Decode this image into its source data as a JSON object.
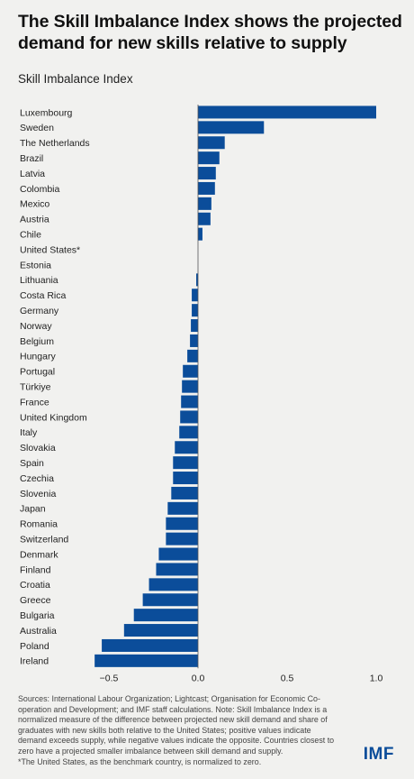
{
  "header": {
    "title": "The Skill Imbalance Index shows the projected demand for new skills relative to supply",
    "subtitle": "Skill Imbalance Index"
  },
  "chart_data": {
    "type": "bar",
    "orientation": "horizontal",
    "categories": [
      "Luxembourg",
      "Sweden",
      "The Netherlands",
      "Brazil",
      "Latvia",
      "Colombia",
      "Mexico",
      "Austria",
      "Chile",
      "United States*",
      "Estonia",
      "Lithuania",
      "Costa Rica",
      "Germany",
      "Norway",
      "Belgium",
      "Hungary",
      "Portugal",
      "Türkiye",
      "France",
      "United Kingdom",
      "Italy",
      "Slovakia",
      "Spain",
      "Czechia",
      "Slovenia",
      "Japan",
      "Romania",
      "Switzerland",
      "Denmark",
      "Finland",
      "Croatia",
      "Greece",
      "Bulgaria",
      "Australia",
      "Poland",
      "Ireland"
    ],
    "values": [
      1.0,
      0.37,
      0.15,
      0.12,
      0.1,
      0.095,
      0.075,
      0.07,
      0.025,
      0.0,
      0.0,
      -0.01,
      -0.035,
      -0.035,
      -0.04,
      -0.045,
      -0.06,
      -0.085,
      -0.09,
      -0.095,
      -0.1,
      -0.105,
      -0.13,
      -0.14,
      -0.14,
      -0.15,
      -0.17,
      -0.18,
      -0.18,
      -0.22,
      -0.235,
      -0.275,
      -0.31,
      -0.36,
      -0.415,
      -0.54,
      -0.58
    ],
    "xlim": [
      -0.6,
      1.0
    ],
    "xticks": [
      -0.5,
      0.0,
      0.5,
      1.0
    ],
    "xtick_labels": [
      "−0.5",
      "0.0",
      "0.5",
      "1.0"
    ],
    "bar_color": "#0b4d9a",
    "grid": false
  },
  "footer": {
    "sources": "Sources: International Labour Organization; Lightcast; Organisation for Economic Co-operation and Development; and IMF staff calculations. Note: Skill Imbalance Index is a normalized measure of the difference between projected new skill demand and share of graduates with new skills both relative to the United States; positive values indicate demand exceeds supply, while negative values indicate the opposite. Countries closest to zero have a projected smaller imbalance between skill demand and supply.",
    "benchmark_note": "*The United States, as the benchmark country, is normalized to zero.",
    "logo": "IMF"
  },
  "colors": {
    "background": "#f1f1ef",
    "bar": "#0b4d9a",
    "logo": "#0b4d9a"
  }
}
